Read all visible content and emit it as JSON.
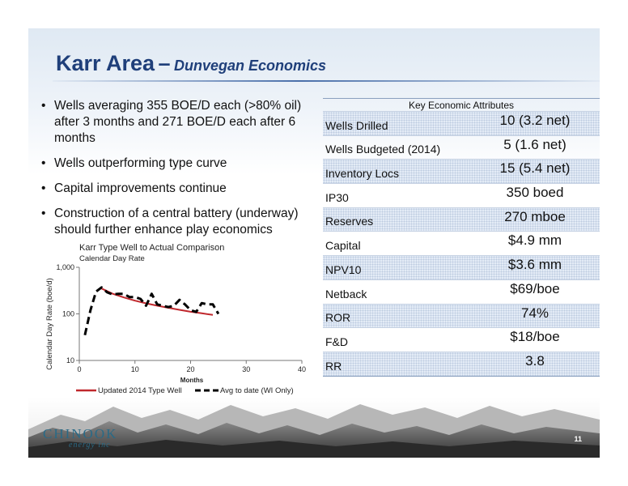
{
  "slide": {
    "title_main": "Karr Area",
    "title_sep": "–",
    "title_sub": "Dunvegan Economics",
    "page_number": "11"
  },
  "bullets": [
    "Wells averaging 355 BOE/D each (>80% oil) after 3 months and 271 BOE/D each after 6 months",
    "Wells outperforming type curve",
    "Capital improvements continue",
    "Construction of a central battery (underway) should further enhance play economics"
  ],
  "table": {
    "header": "Key  Economic Attributes",
    "rows": [
      {
        "label": "Wells Drilled",
        "value": "10 (3.2 net)"
      },
      {
        "label": "Wells Budgeted (2014)",
        "value": "5 (1.6 net)"
      },
      {
        "label": "Inventory Locs",
        "value": "15 (5.4 net)"
      },
      {
        "label": "IP30",
        "value": "350 boed"
      },
      {
        "label": "Reserves",
        "value": "270 mboe"
      },
      {
        "label": "Capital",
        "value": "$4.9 mm"
      },
      {
        "label": "NPV10",
        "value": "$3.6 mm"
      },
      {
        "label": "Netback",
        "value": "$69/boe"
      },
      {
        "label": "ROR",
        "value": "74%"
      },
      {
        "label": "F&D",
        "value": "$18/boe"
      },
      {
        "label": "RR",
        "value": "3.8"
      }
    ]
  },
  "logo": {
    "name": "CHINOOK",
    "tagline": "energy inc"
  },
  "chart_data": {
    "type": "line",
    "title": "Karr Type Well to Actual Comparison",
    "subtitle": "Calendar Day Rate",
    "xlabel": "Months",
    "ylabel": "Calendar Day Rate (boe/d)",
    "xlim": [
      0,
      40
    ],
    "ylim": [
      10,
      1000
    ],
    "y_scale": "log",
    "x_ticks": [
      0,
      10,
      20,
      30,
      40
    ],
    "y_ticks": [
      {
        "value": 10,
        "label": "10"
      },
      {
        "value": 100,
        "label": "100"
      },
      {
        "value": 1000,
        "label": "1,000"
      }
    ],
    "grid": false,
    "legend": "bottom",
    "series": [
      {
        "name": "Updated 2014 Type Well",
        "color": "#c0282d",
        "style": "solid",
        "x": [
          4,
          6,
          8,
          10,
          12,
          14,
          16,
          18,
          20,
          22,
          24
        ],
        "y": [
          350,
          270,
          225,
          192,
          168,
          150,
          135,
          122,
          111,
          103,
          95
        ]
      },
      {
        "name": "Avg to date (WI Only)",
        "color": "#000000",
        "style": "dashed",
        "x": [
          1,
          2,
          3,
          4,
          5,
          6,
          7,
          8,
          9,
          10,
          11,
          12,
          13,
          14,
          15,
          16,
          17,
          18,
          19,
          20,
          21,
          22,
          23,
          24,
          25
        ],
        "y": [
          35,
          120,
          300,
          370,
          290,
          260,
          270,
          270,
          230,
          230,
          210,
          150,
          270,
          160,
          150,
          140,
          150,
          200,
          160,
          120,
          110,
          170,
          160,
          160,
          100
        ]
      }
    ]
  }
}
